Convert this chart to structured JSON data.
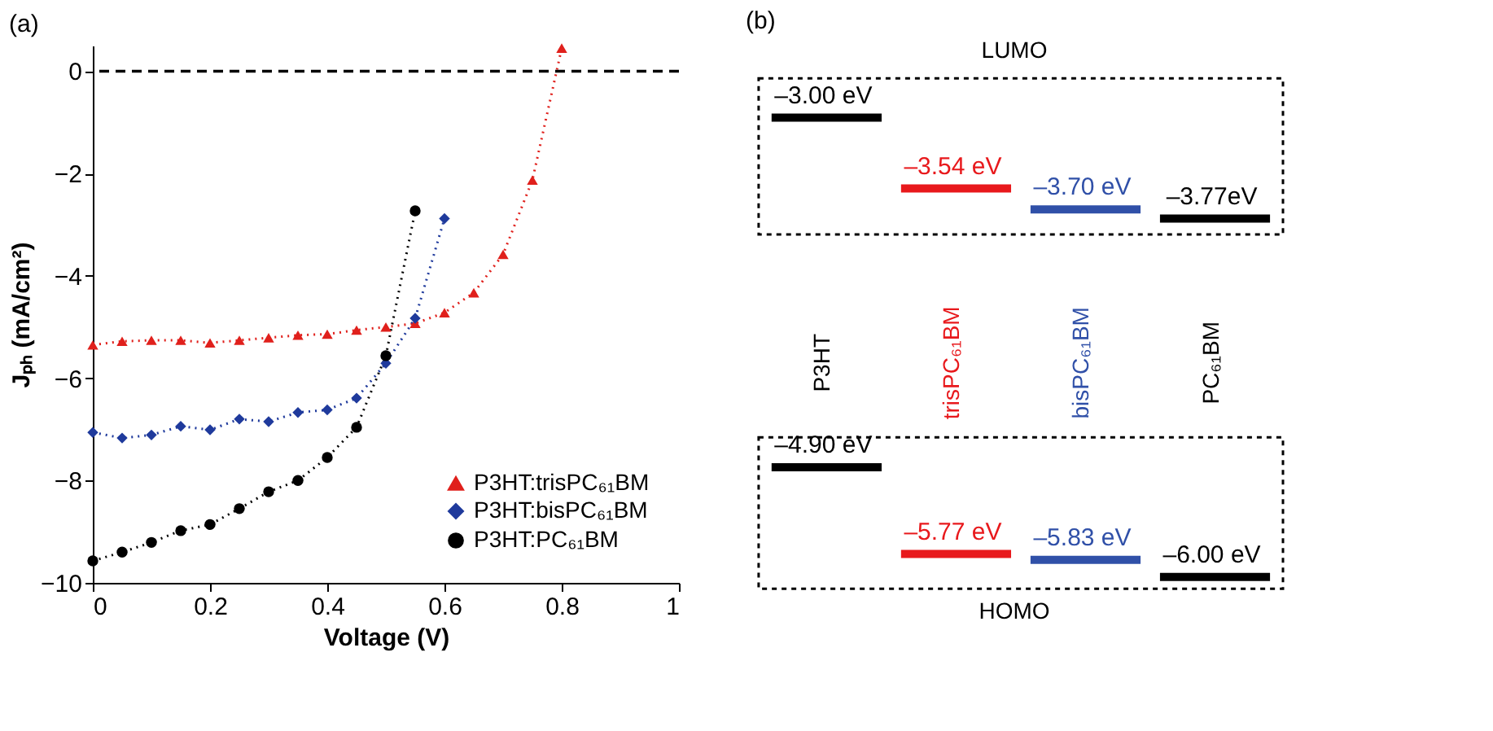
{
  "chart_data": [
    {
      "type": "line",
      "title": "(a)",
      "xlabel": "Voltage (V)",
      "ylabel": "Jₚₕ (mA/cm²)",
      "x": [
        0,
        0.05,
        0.1,
        0.15,
        0.2,
        0.25,
        0.3,
        0.35,
        0.4,
        0.45,
        0.5,
        0.55,
        0.6,
        0.65,
        0.7,
        0.75,
        0.8
      ],
      "series": [
        {
          "name": "P3HT:trisPC₆₁BM",
          "color": "#e0201c",
          "marker": "triangle",
          "values": [
            -5.35,
            -5.28,
            -5.26,
            -5.26,
            -5.31,
            -5.26,
            -5.21,
            -5.16,
            -5.14,
            -5.06,
            -5.0,
            -4.93,
            -4.72,
            -4.33,
            -3.58,
            -2.13,
            0.45
          ]
        },
        {
          "name": "P3HT:bisPC₆₁BM",
          "color": "#1f3a9c",
          "marker": "diamond",
          "values": [
            -7.06,
            -7.17,
            -7.11,
            -6.94,
            -7.01,
            -6.8,
            -6.85,
            -6.67,
            -6.62,
            -6.39,
            -5.71,
            -4.83,
            -2.88,
            null,
            null,
            null,
            null
          ]
        },
        {
          "name": "P3HT:PC₆₁BM",
          "color": "#000000",
          "marker": "circle",
          "values": [
            -9.57,
            -9.4,
            -9.21,
            -8.98,
            -8.86,
            -8.55,
            -8.22,
            -8.0,
            -7.55,
            -6.96,
            -5.56,
            -2.73,
            null,
            null,
            null,
            null,
            null
          ]
        }
      ],
      "line_style": "dotted",
      "xlim": [
        0,
        1
      ],
      "xticks": [
        0,
        0.2,
        0.4,
        0.6,
        0.8,
        1
      ],
      "ylim": [
        -10,
        0.5
      ],
      "yticks": [
        -10,
        -8,
        -6,
        -4,
        -2,
        0
      ],
      "ref_lines": [
        {
          "axis": "y",
          "value": 0,
          "color": "#000000",
          "line_style": "dashed"
        }
      ],
      "grid": false,
      "legend": "bottom right"
    },
    {
      "type": "other",
      "title": "(b)",
      "categories": [
        "P3HT",
        "trisPC₆₁BM",
        "bisPC₆₁BM",
        "PC₆₁BM"
      ],
      "colors": [
        "#000000",
        "#e8191c",
        "#3050a8",
        "#000000"
      ],
      "series": [
        {
          "name": "LUMO",
          "values": [
            -3.0,
            -3.54,
            -3.7,
            -3.77
          ],
          "value_labels": [
            "–3.00 eV",
            "–3.54 eV",
            "–3.70 eV",
            "–3.77eV"
          ]
        },
        {
          "name": "HOMO",
          "values": [
            -4.9,
            -5.77,
            -5.83,
            -6.0
          ],
          "value_labels": [
            "–4.90 eV",
            "–5.77 eV",
            "–5.83 eV",
            "–6.00 eV"
          ]
        }
      ]
    }
  ]
}
